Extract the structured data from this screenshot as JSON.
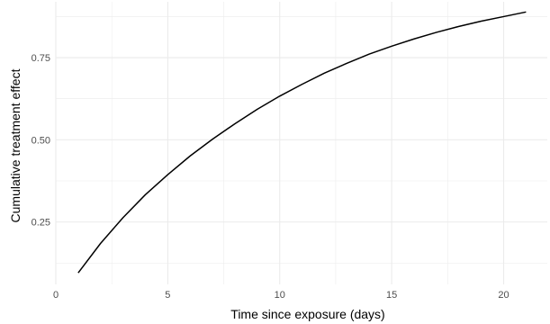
{
  "chart_data": {
    "type": "line",
    "title": "",
    "xlabel": "Time since exposure (days)",
    "ylabel": "Cumulative treatment effect",
    "xlim": [
      0,
      21.95
    ],
    "ylim": [
      0.06,
      0.92
    ],
    "x_ticks": [
      0,
      5,
      10,
      15,
      20
    ],
    "x_tick_labels": [
      "0",
      "5",
      "10",
      "15",
      "20"
    ],
    "y_ticks": [
      0.25,
      0.5,
      0.75
    ],
    "y_tick_labels": [
      "0.25",
      "0.50",
      "0.75"
    ],
    "grid": true,
    "legend": "none",
    "line_color": "#000000",
    "grid_color": "#ebebeb",
    "series": [
      {
        "x": [
          1,
          2,
          3,
          4,
          5,
          6,
          7,
          8,
          9,
          10,
          11,
          12,
          13,
          14,
          15,
          16,
          17,
          18,
          19,
          20,
          21
        ],
        "values": [
          0.095,
          0.185,
          0.263,
          0.333,
          0.394,
          0.451,
          0.502,
          0.549,
          0.593,
          0.633,
          0.669,
          0.703,
          0.733,
          0.761,
          0.785,
          0.807,
          0.827,
          0.845,
          0.861,
          0.875,
          0.889
        ]
      }
    ]
  }
}
